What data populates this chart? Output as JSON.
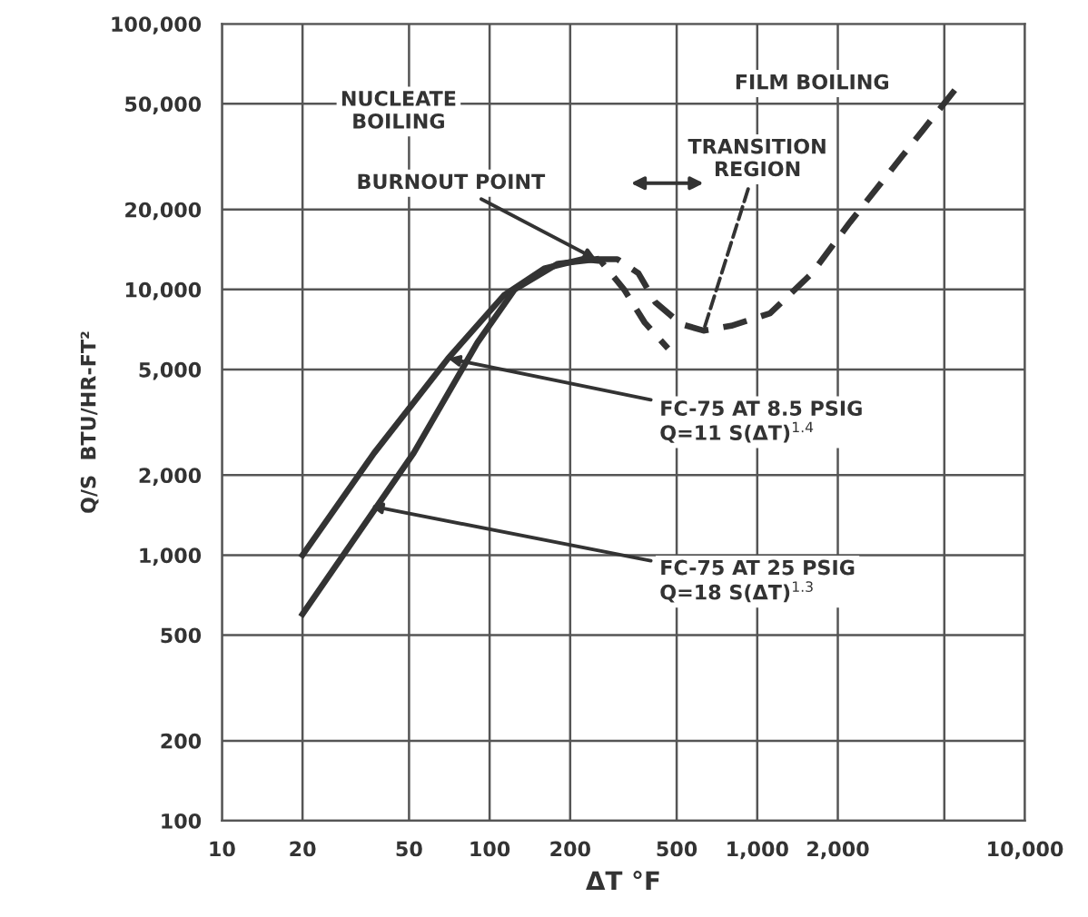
{
  "chart_data": {
    "type": "line",
    "xlabel": "ΔT °F",
    "ylabel": "Q/S  BTU/HR-FT²",
    "log": "xy",
    "grid": true,
    "xlim": [
      10,
      10000
    ],
    "ylim": [
      100,
      100000
    ],
    "xticks": [
      10,
      20,
      50,
      100,
      200,
      500,
      {
        "value": 1000,
        "label": "1,000"
      },
      {
        "value": 2000,
        "label": "2,000"
      },
      {
        "value": 5000,
        "label": null
      },
      {
        "value": 10000,
        "label": "10,000"
      }
    ],
    "yticks": [
      100,
      200,
      500,
      {
        "value": 1000,
        "label": "1,000"
      },
      {
        "value": 2000,
        "label": "2,000"
      },
      {
        "value": 5000,
        "label": "5,000"
      },
      {
        "value": 10000,
        "label": "10,000"
      },
      {
        "value": 20000,
        "label": "20,000"
      },
      {
        "value": 50000,
        "label": "50,000"
      },
      {
        "value": 100000,
        "label": "100,000"
      }
    ],
    "series": [
      {
        "color": "#333333",
        "line_style": "solid",
        "x": [
          20,
          37,
          70,
          113,
          160,
          222
        ],
        "values": [
          1000,
          2420,
          5500,
          9500,
          12000,
          13000
        ]
      },
      {
        "color": "#333333",
        "line_style": "solid",
        "x": [
          20,
          52,
          90,
          124,
          180,
          250
        ],
        "values": [
          600,
          2420,
          6300,
          10000,
          12500,
          13000
        ]
      },
      {
        "color": "#333333",
        "line_style": "dashed",
        "x": [
          222,
          260,
          318,
          380,
          464
        ],
        "values": [
          13000,
          12800,
          10000,
          7500,
          6000
        ]
      },
      {
        "color": "#333333",
        "line_style": "dashed",
        "x": [
          250,
          300,
          360,
          416,
          520,
          630,
          800,
          1116,
          1600,
          2220,
          3500,
          5500
        ],
        "values": [
          13000,
          13000,
          11500,
          8950,
          7400,
          7000,
          7300,
          8130,
          11500,
          17900,
          32000,
          56700
        ]
      }
    ],
    "annotations": [
      "NUCLEATE\nBOILING",
      "FILM BOILING",
      {
        "text": "TRANSITION\nREGION",
        "x": 630,
        "y": 7000
      },
      {
        "text": "BURNOUT POINT",
        "x": 250,
        "y": 13000
      },
      {
        "text": "FC-75 AT 8.5 PSIG\nQ=11 S(ΔT)$^{1.4}$",
        "x": 70,
        "y": 5500
      },
      {
        "text": "FC-75 AT 25 PSIG\nQ=18 S(ΔT)$^{1.3}$",
        "x": 36,
        "y": 1530
      }
    ]
  }
}
